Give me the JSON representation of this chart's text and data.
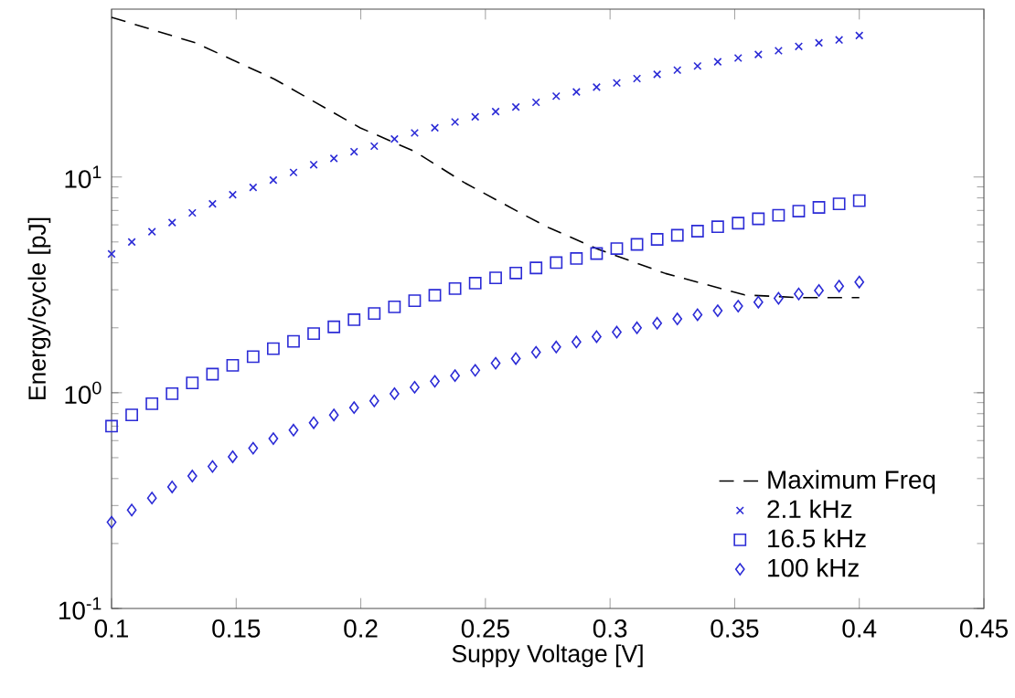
{
  "chart_data": {
    "type": "line",
    "xlabel": "Suppy Voltage [V]",
    "ylabel": "Energy/cycle [pJ]",
    "log": "y",
    "grid": false,
    "legend": "bottom right",
    "xlim": [
      0.1,
      0.45
    ],
    "xticks": [
      0.1,
      0.15,
      0.2,
      0.25,
      0.3,
      0.35,
      0.4,
      0.45
    ],
    "ylim": [
      0.1,
      60
    ],
    "yticks": [
      {
        "value": 0.1,
        "label": "10$^{-1}$"
      },
      {
        "value": 1,
        "label": "10$^{0}$"
      },
      {
        "value": 10,
        "label": "10$^{1}$"
      }
    ],
    "x": [
      0.1,
      0.1081,
      0.1162,
      0.1243,
      0.1324,
      0.1405,
      0.1486,
      0.1568,
      0.1649,
      0.173,
      0.1811,
      0.1892,
      0.1973,
      0.2054,
      0.2135,
      0.2216,
      0.2297,
      0.2378,
      0.2459,
      0.2541,
      0.2622,
      0.2703,
      0.2784,
      0.2865,
      0.2946,
      0.3027,
      0.3108,
      0.3189,
      0.327,
      0.3351,
      0.3432,
      0.3514,
      0.3595,
      0.3676,
      0.3757,
      0.3838,
      0.3919,
      0.4
    ],
    "series": [
      {
        "name": "Maximum Freq",
        "color": "#000000",
        "line_style": "dashed",
        "marker": "none",
        "x": [
          0.1,
          0.1336,
          0.1654,
          0.1998,
          0.2218,
          0.2414,
          0.264,
          0.2757,
          0.2954,
          0.3223,
          0.354,
          0.376,
          0.4
        ],
        "values": [
          55,
          41.9,
          28.4,
          16.9,
          13.1,
          9.44,
          6.82,
          5.8,
          4.62,
          3.57,
          2.84,
          2.76,
          2.76
        ]
      },
      {
        "name": "2.1 kHz",
        "type": "scatter",
        "color": "#2b2bd6",
        "marker": "cross",
        "values": [
          4.4,
          5.0,
          5.58,
          6.15,
          6.82,
          7.51,
          8.28,
          8.95,
          9.68,
          10.5,
          11.4,
          12.2,
          13.1,
          13.9,
          15.0,
          16.0,
          16.9,
          18.0,
          19.0,
          20.1,
          21.1,
          22.2,
          23.7,
          24.8,
          26.1,
          27.3,
          28.6,
          29.9,
          31.3,
          32.7,
          34.2,
          35.6,
          37.0,
          38.5,
          40.3,
          41.9,
          43.2,
          45.3
        ]
      },
      {
        "name": "16.5 kHz",
        "type": "scatter",
        "color": "#2b2bd6",
        "marker": "square",
        "values": [
          0.7,
          0.79,
          0.89,
          0.99,
          1.11,
          1.22,
          1.34,
          1.47,
          1.6,
          1.73,
          1.88,
          2.02,
          2.18,
          2.33,
          2.5,
          2.67,
          2.83,
          3.04,
          3.22,
          3.41,
          3.59,
          3.79,
          4.01,
          4.19,
          4.42,
          4.66,
          4.87,
          5.14,
          5.37,
          5.61,
          5.88,
          6.11,
          6.4,
          6.65,
          6.95,
          7.23,
          7.51,
          7.77
        ]
      },
      {
        "name": "100 kHz",
        "type": "scatter",
        "color": "#2b2bd6",
        "marker": "diamond",
        "values": [
          0.251,
          0.286,
          0.325,
          0.366,
          0.411,
          0.455,
          0.505,
          0.553,
          0.613,
          0.671,
          0.726,
          0.789,
          0.853,
          0.917,
          0.99,
          1.06,
          1.13,
          1.2,
          1.27,
          1.37,
          1.44,
          1.54,
          1.63,
          1.72,
          1.82,
          1.91,
          2.0,
          2.1,
          2.2,
          2.3,
          2.4,
          2.52,
          2.63,
          2.74,
          2.87,
          2.98,
          3.12,
          3.26
        ]
      }
    ]
  }
}
